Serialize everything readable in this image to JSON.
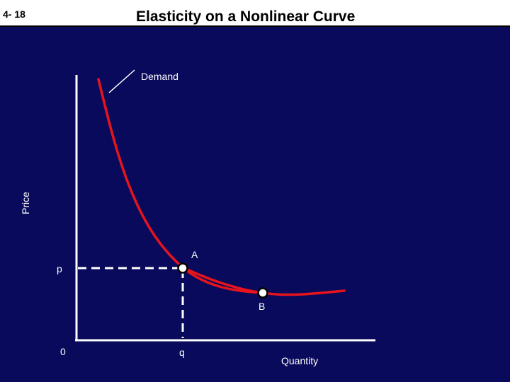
{
  "header": {
    "slide_number": "4- 18",
    "title": "Elasticity on a Nonlinear Curve"
  },
  "diagram": {
    "y_axis_label": "Price",
    "x_axis_label": "Quantity",
    "origin_label": "0",
    "curve_label": "Demand",
    "point_a_label": "A",
    "point_b_label": "B",
    "price_label": "p",
    "quantity_label": "q"
  },
  "colors": {
    "background": "#0a0a5c",
    "curve": "#e8141c",
    "axes": "#ffffff",
    "guide_lines": "#ffffff",
    "point_fill": "#ffffff",
    "point_stroke": "#000000"
  }
}
